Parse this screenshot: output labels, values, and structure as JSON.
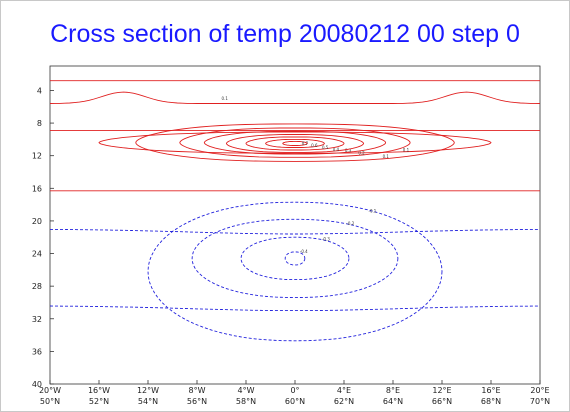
{
  "title": "Cross section of  temp 20080212 00 step 0",
  "colors": {
    "positive": "#e02020",
    "negative": "#2222dd",
    "title": "#1a1aff",
    "axis": "#333333"
  },
  "chart_data": {
    "type": "contour",
    "title": "Cross section of  temp 20080212 00 step 0",
    "xlabel": "",
    "ylabel": "",
    "grid": false,
    "ylim": [
      40,
      1
    ],
    "y_ticks": [
      "4",
      "8",
      "12",
      "16",
      "20",
      "24",
      "28",
      "32",
      "36",
      "40"
    ],
    "x_ticks_lon": [
      "20°W",
      "16°W",
      "12°W",
      "8°W",
      "4°W",
      "0°",
      "4°E",
      "8°E",
      "12°E",
      "16°E",
      "20°E"
    ],
    "x_ticks_lat": [
      "50°N",
      "52°N",
      "54°N",
      "56°N",
      "58°N",
      "60°N",
      "62°N",
      "64°N",
      "66°N",
      "68°N",
      "70°N"
    ],
    "center": {
      "lon": 0,
      "level": 10.5
    },
    "positive_label": "0.1",
    "negative_label": "-0.1",
    "positive_series": [
      {
        "name": "0.1",
        "half_width_deg": 16,
        "half_height": 1.3,
        "center_level": 10.4,
        "outer": true
      },
      {
        "name": "0.1",
        "half_width_deg": 13,
        "half_height": 2.3,
        "center_level": 10.4
      },
      {
        "name": "0.2",
        "half_width_deg": 9.4,
        "half_height": 1.8,
        "center_level": 10.4
      },
      {
        "name": "0.3",
        "half_width_deg": 7.4,
        "half_height": 1.4,
        "center_level": 10.4
      },
      {
        "name": "0.4",
        "half_width_deg": 5.6,
        "half_height": 1.1,
        "center_level": 10.5
      },
      {
        "name": "0.5",
        "half_width_deg": 4.0,
        "half_height": 0.8,
        "center_level": 10.5
      },
      {
        "name": "0.6",
        "half_width_deg": 2.4,
        "half_height": 0.5,
        "center_level": 10.5
      },
      {
        "name": "0.7",
        "half_width_deg": 1.0,
        "half_height": 0.25,
        "center_level": 10.5
      }
    ],
    "negative_series": [
      {
        "name": "-0.1",
        "half_width_deg": 12,
        "half_height": 8.5,
        "center_level": 26.2
      },
      {
        "name": "-0.2",
        "half_width_deg": 8.4,
        "half_height": 4.8,
        "center_level": 24.6
      },
      {
        "name": "-0.3",
        "half_width_deg": 4.4,
        "half_height": 2.6,
        "center_level": 24.6
      },
      {
        "name": "-0.4",
        "half_width_deg": 0.8,
        "half_height": 0.8,
        "center_level": 24.6
      }
    ]
  }
}
